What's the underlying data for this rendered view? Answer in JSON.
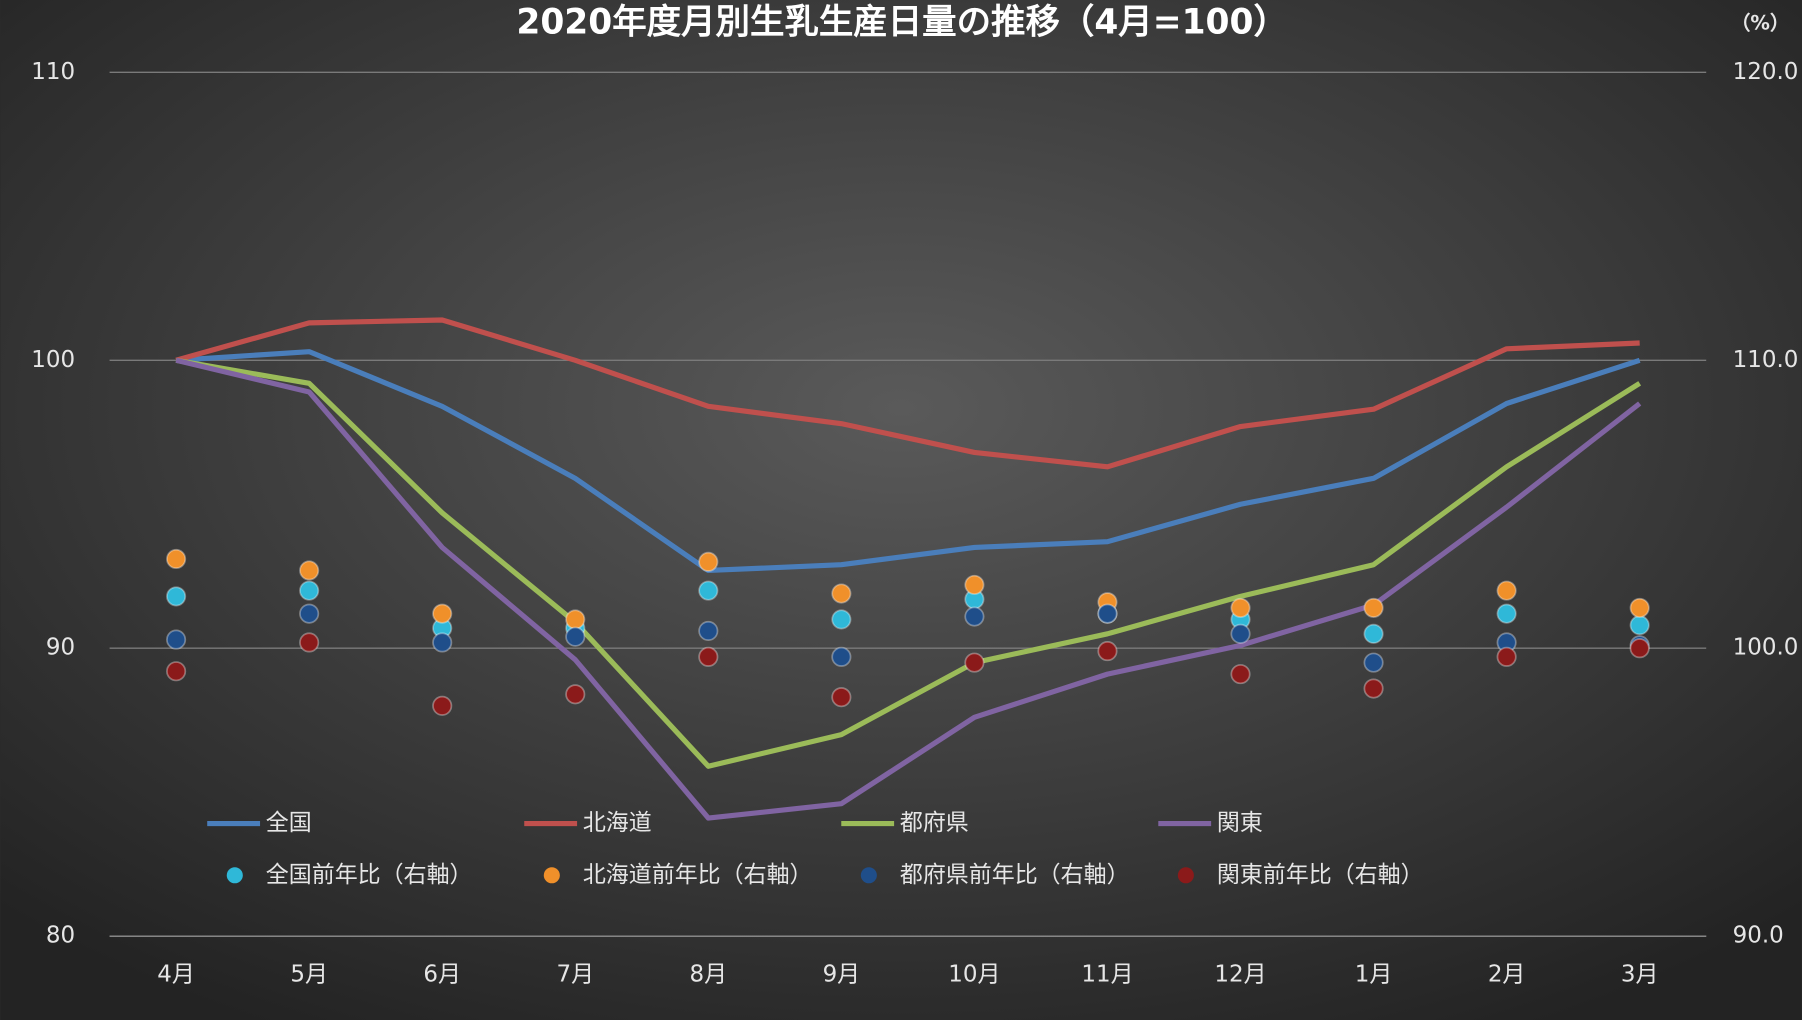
{
  "chart_data": {
    "type": "line",
    "title": "2020年度月別生乳生産日量の推移（4月=100）",
    "y2label": "（%）",
    "categories": [
      "4月",
      "5月",
      "6月",
      "7月",
      "8月",
      "9月",
      "10月",
      "11月",
      "12月",
      "1月",
      "2月",
      "3月"
    ],
    "ylim": [
      80,
      110
    ],
    "yticks": [
      80,
      90,
      100,
      110
    ],
    "y2lim": [
      90,
      120
    ],
    "y2ticks": [
      {
        "value": 90,
        "label": "90.0"
      },
      {
        "value": 100,
        "label": "100.0"
      },
      {
        "value": 110,
        "label": "110.0"
      },
      {
        "value": 120,
        "label": "120.0"
      }
    ],
    "grid": true,
    "legend": "bottom",
    "series": [
      {
        "name": "全国",
        "color": "#4a7ebb",
        "values": [
          100,
          100.3,
          98.4,
          95.9,
          92.7,
          92.9,
          93.5,
          93.7,
          95.0,
          95.9,
          98.5,
          100
        ]
      },
      {
        "name": "北海道",
        "color": "#c0504d",
        "values": [
          100,
          101.3,
          101.4,
          100.0,
          98.4,
          97.8,
          96.8,
          96.3,
          97.7,
          98.3,
          100.4,
          100.6
        ]
      },
      {
        "name": "都府県",
        "color": "#9bbb59",
        "values": [
          100,
          99.2,
          94.7,
          90.9,
          85.9,
          87.0,
          89.5,
          90.5,
          91.8,
          92.9,
          96.3,
          99.2
        ]
      },
      {
        "name": "関東",
        "color": "#8064a2",
        "values": [
          100,
          98.9,
          93.5,
          89.6,
          84.1,
          84.6,
          87.6,
          89.1,
          90.1,
          91.5,
          94.9,
          98.5
        ]
      },
      {
        "name": "全国前年比（右軸）",
        "type": "scatter",
        "axis": "y2",
        "color": "#2fb8d8",
        "values": [
          101.8,
          102.0,
          100.7,
          100.7,
          102.0,
          101.0,
          101.7,
          101.2,
          101.0,
          100.5,
          101.2,
          100.8
        ]
      },
      {
        "name": "北海道前年比（右軸）",
        "type": "scatter",
        "axis": "y2",
        "color": "#f0902a",
        "values": [
          103.1,
          102.7,
          101.2,
          101.0,
          103.0,
          101.9,
          102.2,
          101.6,
          101.4,
          101.4,
          102.0,
          101.4
        ]
      },
      {
        "name": "都府県前年比（右軸）",
        "type": "scatter",
        "axis": "y2",
        "color": "#1f4e8a",
        "values": [
          100.3,
          101.2,
          100.2,
          100.4,
          100.6,
          99.7,
          101.1,
          101.2,
          100.5,
          99.5,
          100.2,
          100.1
        ]
      },
      {
        "name": "関東前年比（右軸）",
        "type": "scatter",
        "axis": "y2",
        "color": "#8b1a1a",
        "values": [
          99.2,
          100.2,
          98.0,
          98.4,
          99.7,
          98.3,
          99.5,
          99.9,
          99.1,
          98.6,
          99.7,
          100.0
        ]
      }
    ]
  }
}
